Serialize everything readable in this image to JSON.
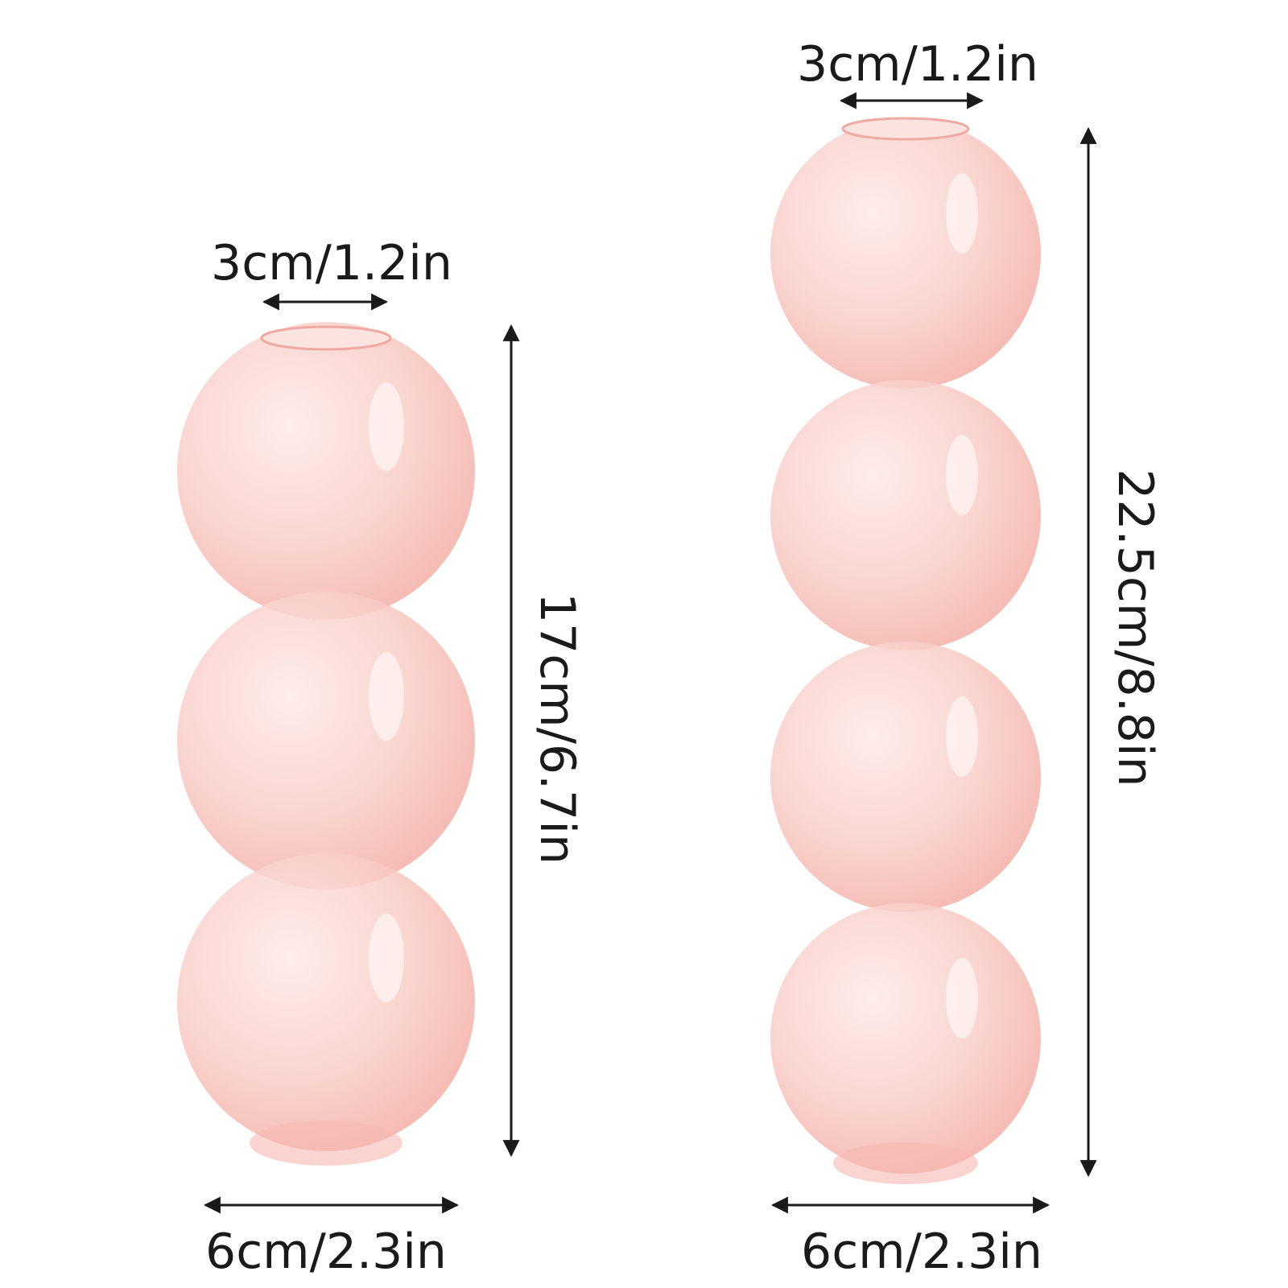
{
  "colors": {
    "glass_fill": "#f9c9c4",
    "glass_edge": "#f0a9a2",
    "arrow": "#1a1a1a",
    "background": "#ffffff"
  },
  "small_vase": {
    "bubble_count": 3,
    "top_label": "3cm/1.2in",
    "height_label": "17cm/6.7in",
    "bottom_label": "6cm/2.3in"
  },
  "large_vase": {
    "bubble_count": 4,
    "top_label": "3cm/1.2in",
    "height_label": "22.5cm/8.8in",
    "bottom_label": "6cm/2.3in"
  }
}
